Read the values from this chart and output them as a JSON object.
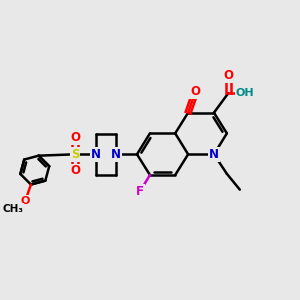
{
  "background_color": "#e8e8e8",
  "atom_colors": {
    "C": "#000000",
    "N": "#0000cc",
    "O": "#ff0000",
    "F": "#cc00cc",
    "S": "#cccc00",
    "OH": "#008b8b"
  },
  "bond_color": "#000000",
  "bond_width": 1.8
}
